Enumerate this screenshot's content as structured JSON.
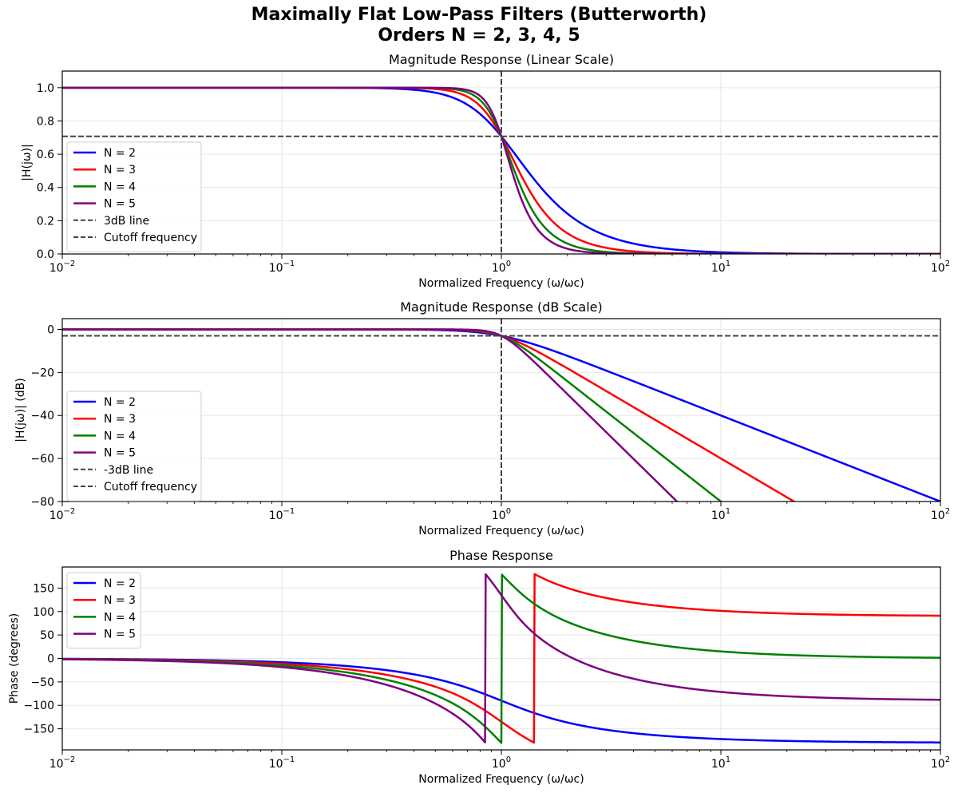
{
  "figure": {
    "title_line1": "Maximally Flat Low-Pass Filters (Butterworth)",
    "title_line2": "Orders N = 2, 3, 4, 5"
  },
  "colors": {
    "N2": "#0000ff",
    "N3": "#ff0000",
    "N4": "#008000",
    "N5": "#800080",
    "reference": "#444444",
    "grid": "#e6e6e6"
  },
  "chart_data": [
    {
      "type": "line",
      "title": "Magnitude Response (Linear Scale)",
      "xlabel": "Normalized Frequency (ω/ωc)",
      "ylabel": "|H(jω)|",
      "xscale": "log",
      "xlim": [
        0.01,
        100
      ],
      "ylim": [
        0,
        1.1
      ],
      "xticks": [
        0.01,
        0.1,
        1,
        10,
        100
      ],
      "xtick_labels": [
        [
          "10",
          "−2"
        ],
        [
          "10",
          "−1"
        ],
        [
          "10",
          "0"
        ],
        [
          "10",
          "1"
        ],
        [
          "10",
          "2"
        ]
      ],
      "yticks": [
        0,
        0.2,
        0.4,
        0.6,
        0.8,
        1.0
      ],
      "ytick_labels": [
        "0.0",
        "0.2",
        "0.4",
        "0.6",
        "0.8",
        "1.0"
      ],
      "grid": true,
      "legend_position": "center-left",
      "series": [
        {
          "name": "N = 2",
          "order": 2,
          "x": [
            0.01,
            0.1,
            0.5,
            0.8,
            1,
            1.25,
            2,
            3,
            5,
            10,
            100
          ],
          "y": [
            1.0,
            1.0,
            0.97,
            0.84,
            0.707,
            0.54,
            0.243,
            0.11,
            0.04,
            0.01,
            0.0001
          ]
        },
        {
          "name": "N = 3",
          "order": 3,
          "x": [
            0.01,
            0.1,
            0.5,
            0.8,
            1,
            1.25,
            2,
            3,
            5,
            10,
            100
          ],
          "y": [
            1.0,
            1.0,
            0.99,
            0.89,
            0.707,
            0.46,
            0.124,
            0.037,
            0.008,
            0.001,
            0.0
          ]
        },
        {
          "name": "N = 4",
          "order": 4,
          "x": [
            0.01,
            0.1,
            0.5,
            0.8,
            1,
            1.25,
            2,
            3,
            5,
            10,
            100
          ],
          "y": [
            1.0,
            1.0,
            1.0,
            0.93,
            0.707,
            0.38,
            0.062,
            0.012,
            0.002,
            0.0,
            0.0
          ]
        },
        {
          "name": "N = 5",
          "order": 5,
          "x": [
            0.01,
            0.1,
            0.5,
            0.8,
            1,
            1.25,
            2,
            3,
            5,
            10,
            100
          ],
          "y": [
            1.0,
            1.0,
            1.0,
            0.95,
            0.707,
            0.31,
            0.031,
            0.004,
            0.0,
            0.0,
            0.0
          ]
        }
      ],
      "reference_lines": [
        {
          "name": "3dB line",
          "orientation": "horizontal",
          "value": 0.7071
        },
        {
          "name": "Cutoff frequency",
          "orientation": "vertical",
          "value": 1
        }
      ]
    },
    {
      "type": "line",
      "title": "Magnitude Response (dB Scale)",
      "xlabel": "Normalized Frequency (ω/ωc)",
      "ylabel": "|H(jω)| (dB)",
      "xscale": "log",
      "xlim": [
        0.01,
        100
      ],
      "ylim": [
        -80,
        5
      ],
      "xticks": [
        0.01,
        0.1,
        1,
        10,
        100
      ],
      "xtick_labels": [
        [
          "10",
          "−2"
        ],
        [
          "10",
          "−1"
        ],
        [
          "10",
          "0"
        ],
        [
          "10",
          "1"
        ],
        [
          "10",
          "2"
        ]
      ],
      "yticks": [
        0,
        -20,
        -40,
        -60,
        -80
      ],
      "ytick_labels": [
        "0",
        "−20",
        "−40",
        "−60",
        "−80"
      ],
      "grid": true,
      "legend_position": "lower-left",
      "series": [
        {
          "name": "N = 2",
          "order": 2,
          "x": [
            0.01,
            0.5,
            1,
            2,
            10,
            100
          ],
          "y": [
            0,
            -0.26,
            -3.01,
            -12.3,
            -40.0,
            -80.0
          ]
        },
        {
          "name": "N = 3",
          "order": 3,
          "x": [
            0.01,
            0.5,
            1,
            2,
            10,
            21.5
          ],
          "y": [
            0,
            -0.07,
            -3.01,
            -18.1,
            -60.0,
            -80.0
          ]
        },
        {
          "name": "N = 4",
          "order": 4,
          "x": [
            0.01,
            0.5,
            1,
            2,
            10
          ],
          "y": [
            0,
            -0.02,
            -3.01,
            -24.1,
            -80.0
          ]
        },
        {
          "name": "N = 5",
          "order": 5,
          "x": [
            0.01,
            0.5,
            1,
            2,
            6.3
          ],
          "y": [
            0,
            -0.004,
            -3.01,
            -30.1,
            -80.0
          ]
        }
      ],
      "reference_lines": [
        {
          "name": "-3dB line",
          "orientation": "horizontal",
          "value": -3
        },
        {
          "name": "Cutoff frequency",
          "orientation": "vertical",
          "value": 1
        }
      ]
    },
    {
      "type": "line",
      "title": "Phase Response",
      "xlabel": "Normalized Frequency (ω/ωc)",
      "ylabel": "Phase (degrees)",
      "xscale": "log",
      "xlim": [
        0.01,
        100
      ],
      "ylim": [
        -195,
        195
      ],
      "xticks": [
        0.01,
        0.1,
        1,
        10,
        100
      ],
      "xtick_labels": [
        [
          "10",
          "−2"
        ],
        [
          "10",
          "−1"
        ],
        [
          "10",
          "0"
        ],
        [
          "10",
          "1"
        ],
        [
          "10",
          "2"
        ]
      ],
      "yticks": [
        150,
        100,
        50,
        0,
        -50,
        -100,
        -150
      ],
      "ytick_labels": [
        "150",
        "100",
        "50",
        "0",
        "−50",
        "−100",
        "−150"
      ],
      "grid": true,
      "legend_position": "upper-left",
      "series": [
        {
          "name": "N = 2",
          "order": 2,
          "x": [
            0.01,
            0.1,
            0.5,
            1,
            1.42,
            2,
            10,
            100
          ],
          "y": [
            -0.8,
            -8.1,
            -43.3,
            -90,
            -117,
            -137,
            -172,
            -179
          ]
        },
        {
          "name": "N = 3",
          "order": 3,
          "x": [
            0.01,
            0.1,
            0.5,
            1,
            1.42,
            1.42,
            2,
            10,
            100
          ],
          "y": [
            -1.2,
            -11.5,
            -65,
            -135,
            -180,
            180,
            152,
            102,
            91
          ]
        },
        {
          "name": "N = 4",
          "order": 4,
          "x": [
            0.01,
            0.1,
            0.5,
            1,
            1,
            2,
            10,
            100
          ],
          "y": [
            -1.5,
            -15,
            -82,
            -180,
            180,
            96,
            15,
            1.5
          ]
        },
        {
          "name": "N = 5",
          "order": 5,
          "x": [
            0.01,
            0.1,
            0.5,
            0.83,
            0.83,
            1,
            2,
            10,
            100
          ],
          "y": [
            -1.9,
            -19,
            -100,
            -180,
            180,
            135,
            35,
            -72,
            -88
          ]
        }
      ]
    }
  ]
}
